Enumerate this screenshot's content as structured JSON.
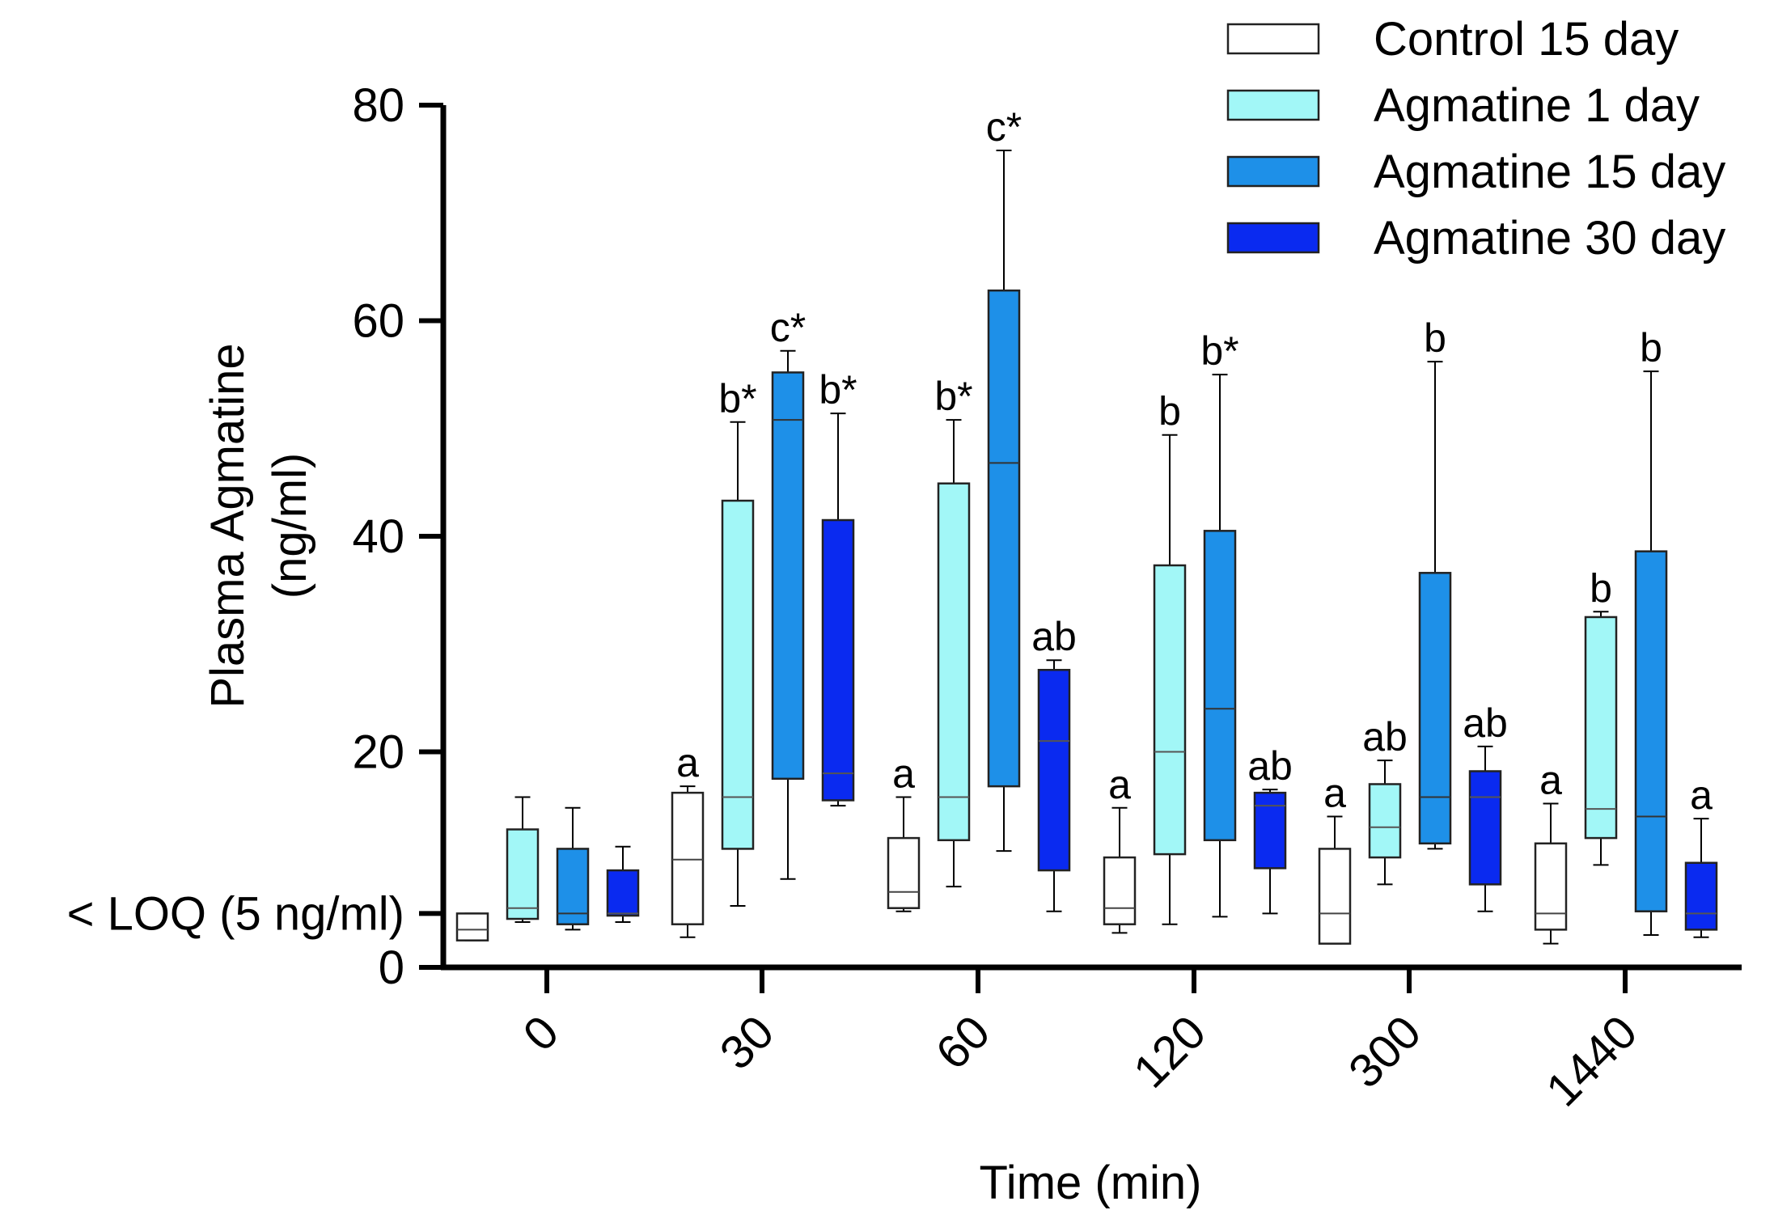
{
  "chart_data": {
    "type": "box",
    "title": "",
    "xlabel": "Time (min)",
    "ylabel": "Plasma Agmatine",
    "ylabel_unit": "(ng/ml)",
    "ylim": [
      0,
      80
    ],
    "yticks": [
      0,
      20,
      40,
      60,
      80
    ],
    "y_special_tick": {
      "value": 5,
      "label": "< LOQ (5 ng/ml)"
    },
    "categories": [
      "0",
      "30",
      "60",
      "120",
      "300",
      "1440"
    ],
    "legend_position": "top-right",
    "series": [
      {
        "name": "Control 15 day",
        "color": "#ffffff",
        "median_color": "#444444",
        "boxes": [
          {
            "min": 2.5,
            "q1": 2.5,
            "median": 3.5,
            "q3": 5,
            "max": 5,
            "label": ""
          },
          {
            "min": 2.8,
            "q1": 4,
            "median": 10,
            "q3": 16.2,
            "max": 16.8,
            "label": "a"
          },
          {
            "min": 5.2,
            "q1": 5.5,
            "median": 7,
            "q3": 12,
            "max": 15.8,
            "label": "a"
          },
          {
            "min": 3.2,
            "q1": 4,
            "median": 5.5,
            "q3": 10.2,
            "max": 14.8,
            "label": "a"
          },
          {
            "min": 2.2,
            "q1": 2.2,
            "median": 5,
            "q3": 11,
            "max": 14,
            "label": "a"
          },
          {
            "min": 2.2,
            "q1": 3.5,
            "median": 5,
            "q3": 11.5,
            "max": 15.2,
            "label": "a"
          }
        ]
      },
      {
        "name": "Agmatine 1 day",
        "color": "#a2f7f7",
        "median_color": "#555555",
        "boxes": [
          {
            "min": 4.2,
            "q1": 4.5,
            "median": 5.5,
            "q3": 12.8,
            "max": 15.8,
            "label": ""
          },
          {
            "min": 5.7,
            "q1": 11,
            "median": 15.8,
            "q3": 43.3,
            "max": 50.6,
            "label": "b*"
          },
          {
            "min": 7.5,
            "q1": 11.8,
            "median": 15.8,
            "q3": 44.9,
            "max": 50.8,
            "label": "b*"
          },
          {
            "min": 4,
            "q1": 10.5,
            "median": 20,
            "q3": 37.3,
            "max": 49.4,
            "label": "b"
          },
          {
            "min": 7.7,
            "q1": 10.2,
            "median": 13,
            "q3": 17,
            "max": 19.2,
            "label": "ab"
          },
          {
            "min": 9.5,
            "q1": 12,
            "median": 14.7,
            "q3": 32.5,
            "max": 33,
            "label": "b"
          }
        ]
      },
      {
        "name": "Agmatine 15 day",
        "color": "#1e90e8",
        "median_color": "#333333",
        "boxes": [
          {
            "min": 3.5,
            "q1": 4,
            "median": 5,
            "q3": 11,
            "max": 14.8,
            "label": ""
          },
          {
            "min": 8.2,
            "q1": 17.5,
            "median": 50.8,
            "q3": 55.2,
            "max": 57.2,
            "label": "c*"
          },
          {
            "min": 10.8,
            "q1": 16.8,
            "median": 46.8,
            "q3": 62.8,
            "max": 75.8,
            "label": "c*"
          },
          {
            "min": 4.7,
            "q1": 11.8,
            "median": 24,
            "q3": 40.5,
            "max": 55,
            "label": "b*"
          },
          {
            "min": 11,
            "q1": 11.5,
            "median": 15.8,
            "q3": 36.6,
            "max": 56.2,
            "label": "b"
          },
          {
            "min": 3,
            "q1": 5.2,
            "median": 14,
            "q3": 38.6,
            "max": 55.3,
            "label": "b"
          }
        ]
      },
      {
        "name": "Agmatine 30 day",
        "color": "#0a2af0",
        "median_color": "#555555",
        "boxes": [
          {
            "min": 4.2,
            "q1": 4.8,
            "median": 5,
            "q3": 9,
            "max": 11.2,
            "label": ""
          },
          {
            "min": 15,
            "q1": 15.5,
            "median": 18,
            "q3": 41.5,
            "max": 51.4,
            "label": "b*"
          },
          {
            "min": 5.2,
            "q1": 9,
            "median": 21,
            "q3": 27.6,
            "max": 28.5,
            "label": "ab"
          },
          {
            "min": 5,
            "q1": 9.2,
            "median": 15,
            "q3": 16.2,
            "max": 16.5,
            "label": "ab"
          },
          {
            "min": 5.2,
            "q1": 7.7,
            "median": 15.8,
            "q3": 18.2,
            "max": 20.5,
            "label": "ab"
          },
          {
            "min": 2.8,
            "q1": 3.5,
            "median": 5,
            "q3": 9.7,
            "max": 13.8,
            "label": "a"
          }
        ]
      }
    ]
  }
}
